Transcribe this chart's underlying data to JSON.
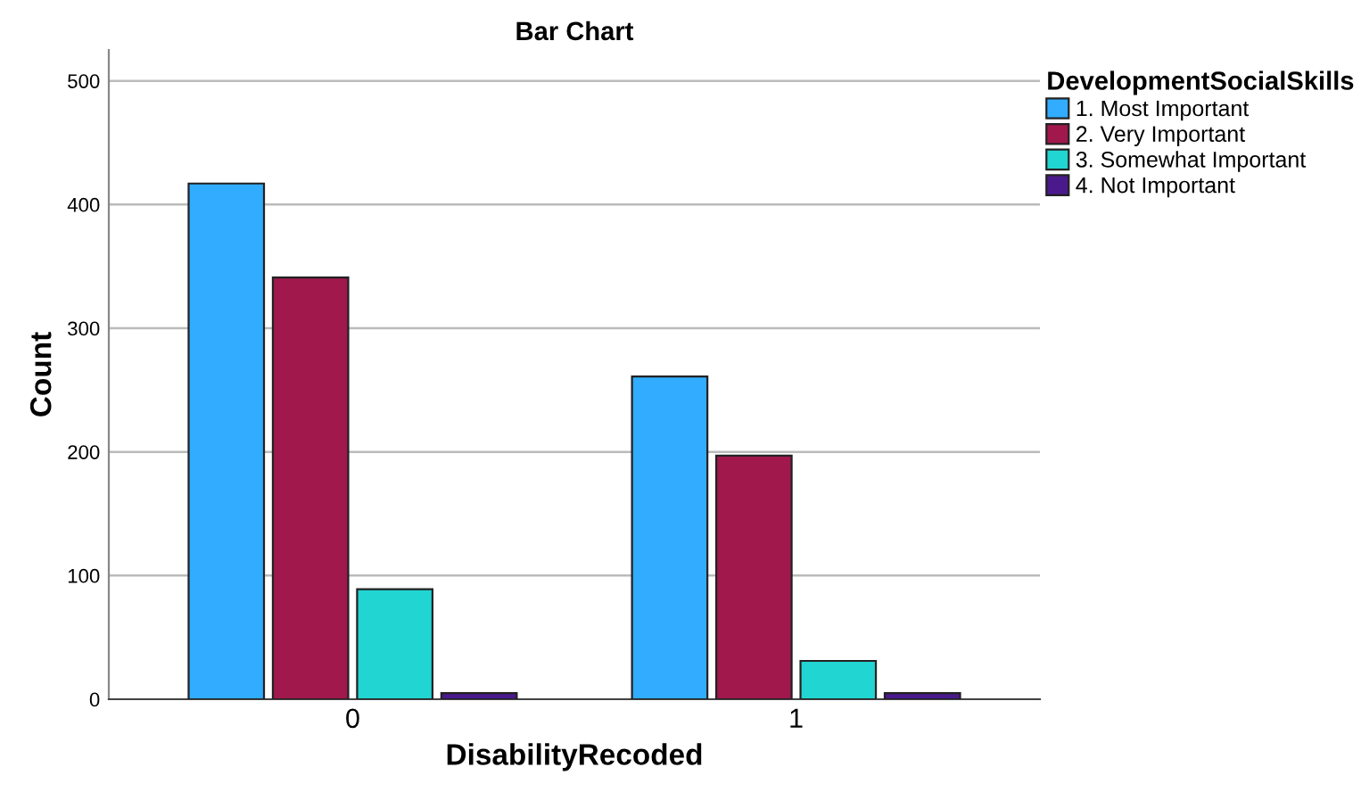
{
  "chart_data": {
    "type": "bar",
    "title": "Bar Chart",
    "xlabel": "DisabilityRecoded",
    "ylabel": "Count",
    "legend_title": "DevelopmentSocialSkills",
    "categories": [
      "0",
      "1"
    ],
    "series": [
      {
        "name": "1. Most Important",
        "color": "#31acff",
        "values": [
          417,
          261
        ]
      },
      {
        "name": "2. Very Important",
        "color": "#a0184c",
        "values": [
          341,
          197
        ]
      },
      {
        "name": "3. Somewhat Important",
        "color": "#21d5d2",
        "values": [
          89,
          31
        ]
      },
      {
        "name": "4. Not Important",
        "color": "#4a1a8c",
        "values": [
          5,
          5
        ]
      }
    ],
    "ylim": [
      0,
      525
    ],
    "yticks": [
      0,
      100,
      200,
      300,
      400,
      500
    ],
    "grid": "y",
    "legend": "top right"
  }
}
